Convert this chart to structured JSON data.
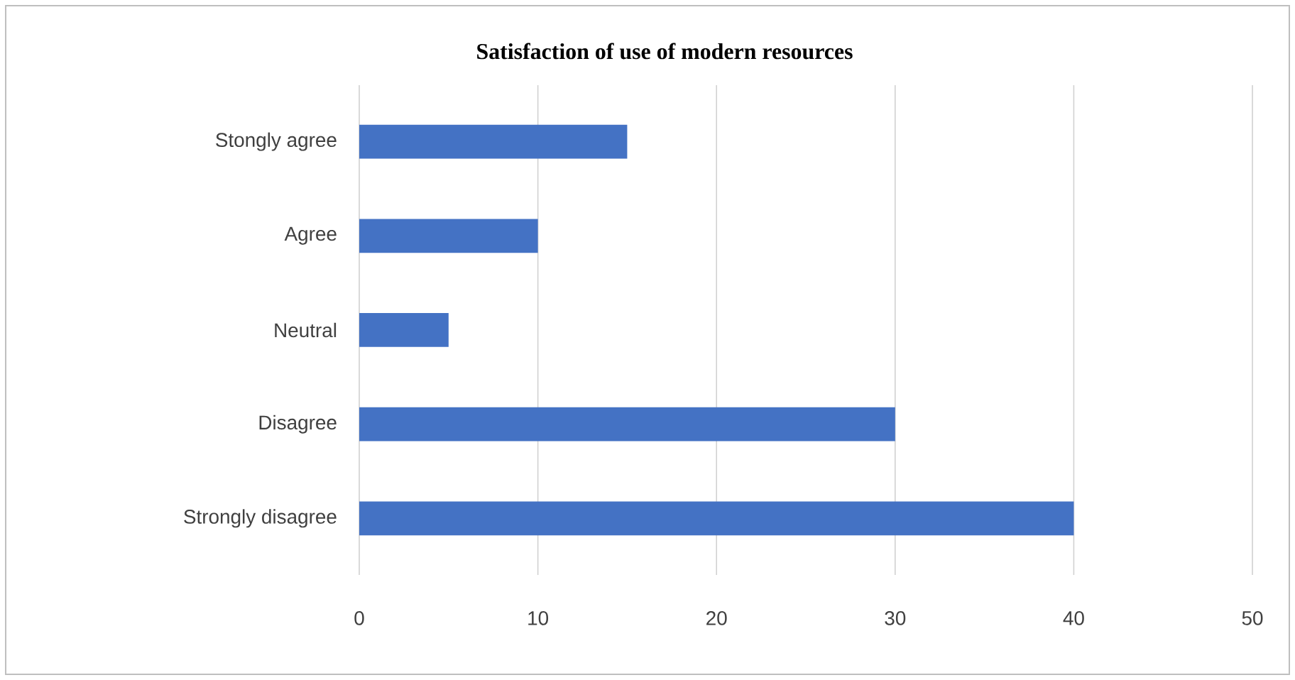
{
  "chart_data": {
    "type": "bar",
    "orientation": "horizontal",
    "title": "Satisfaction of use of modern resources",
    "categories": [
      "Stongly agree",
      "Agree",
      "Neutral",
      "Disagree",
      "Strongly disagree"
    ],
    "values": [
      15,
      10,
      5,
      30,
      40
    ],
    "color": "#4472c4",
    "xlim": [
      0,
      50
    ],
    "xticks": [
      0,
      10,
      20,
      30,
      40,
      50
    ],
    "grid": "x"
  }
}
